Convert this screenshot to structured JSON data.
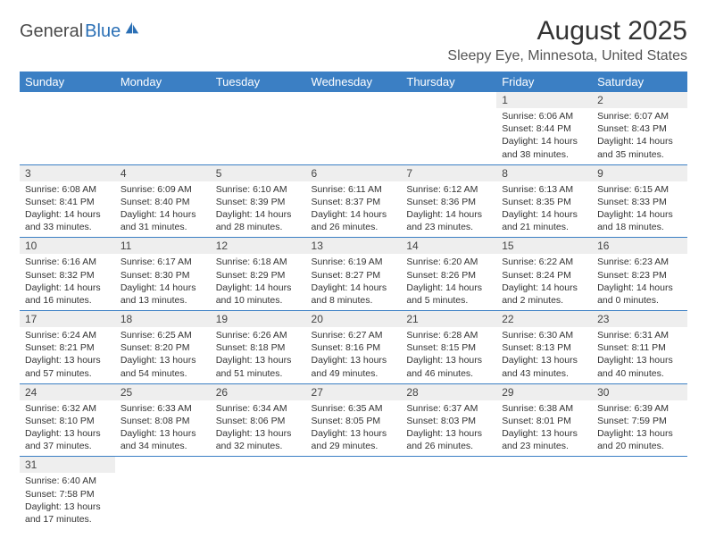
{
  "logo": {
    "part1": "General",
    "part2": "Blue"
  },
  "title": "August 2025",
  "location": "Sleepy Eye, Minnesota, United States",
  "colors": {
    "header_bg": "#3b7fc4",
    "header_text": "#ffffff",
    "daynum_bg": "#eeeeee",
    "rule": "#3b7fc4",
    "logo_blue": "#2a6fb5",
    "logo_gray": "#4a4a4a"
  },
  "weekdays": [
    "Sunday",
    "Monday",
    "Tuesday",
    "Wednesday",
    "Thursday",
    "Friday",
    "Saturday"
  ],
  "weeks": [
    [
      null,
      null,
      null,
      null,
      null,
      {
        "n": "1",
        "sr": "Sunrise: 6:06 AM",
        "ss": "Sunset: 8:44 PM",
        "dl": "Daylight: 14 hours and 38 minutes."
      },
      {
        "n": "2",
        "sr": "Sunrise: 6:07 AM",
        "ss": "Sunset: 8:43 PM",
        "dl": "Daylight: 14 hours and 35 minutes."
      }
    ],
    [
      {
        "n": "3",
        "sr": "Sunrise: 6:08 AM",
        "ss": "Sunset: 8:41 PM",
        "dl": "Daylight: 14 hours and 33 minutes."
      },
      {
        "n": "4",
        "sr": "Sunrise: 6:09 AM",
        "ss": "Sunset: 8:40 PM",
        "dl": "Daylight: 14 hours and 31 minutes."
      },
      {
        "n": "5",
        "sr": "Sunrise: 6:10 AM",
        "ss": "Sunset: 8:39 PM",
        "dl": "Daylight: 14 hours and 28 minutes."
      },
      {
        "n": "6",
        "sr": "Sunrise: 6:11 AM",
        "ss": "Sunset: 8:37 PM",
        "dl": "Daylight: 14 hours and 26 minutes."
      },
      {
        "n": "7",
        "sr": "Sunrise: 6:12 AM",
        "ss": "Sunset: 8:36 PM",
        "dl": "Daylight: 14 hours and 23 minutes."
      },
      {
        "n": "8",
        "sr": "Sunrise: 6:13 AM",
        "ss": "Sunset: 8:35 PM",
        "dl": "Daylight: 14 hours and 21 minutes."
      },
      {
        "n": "9",
        "sr": "Sunrise: 6:15 AM",
        "ss": "Sunset: 8:33 PM",
        "dl": "Daylight: 14 hours and 18 minutes."
      }
    ],
    [
      {
        "n": "10",
        "sr": "Sunrise: 6:16 AM",
        "ss": "Sunset: 8:32 PM",
        "dl": "Daylight: 14 hours and 16 minutes."
      },
      {
        "n": "11",
        "sr": "Sunrise: 6:17 AM",
        "ss": "Sunset: 8:30 PM",
        "dl": "Daylight: 14 hours and 13 minutes."
      },
      {
        "n": "12",
        "sr": "Sunrise: 6:18 AM",
        "ss": "Sunset: 8:29 PM",
        "dl": "Daylight: 14 hours and 10 minutes."
      },
      {
        "n": "13",
        "sr": "Sunrise: 6:19 AM",
        "ss": "Sunset: 8:27 PM",
        "dl": "Daylight: 14 hours and 8 minutes."
      },
      {
        "n": "14",
        "sr": "Sunrise: 6:20 AM",
        "ss": "Sunset: 8:26 PM",
        "dl": "Daylight: 14 hours and 5 minutes."
      },
      {
        "n": "15",
        "sr": "Sunrise: 6:22 AM",
        "ss": "Sunset: 8:24 PM",
        "dl": "Daylight: 14 hours and 2 minutes."
      },
      {
        "n": "16",
        "sr": "Sunrise: 6:23 AM",
        "ss": "Sunset: 8:23 PM",
        "dl": "Daylight: 14 hours and 0 minutes."
      }
    ],
    [
      {
        "n": "17",
        "sr": "Sunrise: 6:24 AM",
        "ss": "Sunset: 8:21 PM",
        "dl": "Daylight: 13 hours and 57 minutes."
      },
      {
        "n": "18",
        "sr": "Sunrise: 6:25 AM",
        "ss": "Sunset: 8:20 PM",
        "dl": "Daylight: 13 hours and 54 minutes."
      },
      {
        "n": "19",
        "sr": "Sunrise: 6:26 AM",
        "ss": "Sunset: 8:18 PM",
        "dl": "Daylight: 13 hours and 51 minutes."
      },
      {
        "n": "20",
        "sr": "Sunrise: 6:27 AM",
        "ss": "Sunset: 8:16 PM",
        "dl": "Daylight: 13 hours and 49 minutes."
      },
      {
        "n": "21",
        "sr": "Sunrise: 6:28 AM",
        "ss": "Sunset: 8:15 PM",
        "dl": "Daylight: 13 hours and 46 minutes."
      },
      {
        "n": "22",
        "sr": "Sunrise: 6:30 AM",
        "ss": "Sunset: 8:13 PM",
        "dl": "Daylight: 13 hours and 43 minutes."
      },
      {
        "n": "23",
        "sr": "Sunrise: 6:31 AM",
        "ss": "Sunset: 8:11 PM",
        "dl": "Daylight: 13 hours and 40 minutes."
      }
    ],
    [
      {
        "n": "24",
        "sr": "Sunrise: 6:32 AM",
        "ss": "Sunset: 8:10 PM",
        "dl": "Daylight: 13 hours and 37 minutes."
      },
      {
        "n": "25",
        "sr": "Sunrise: 6:33 AM",
        "ss": "Sunset: 8:08 PM",
        "dl": "Daylight: 13 hours and 34 minutes."
      },
      {
        "n": "26",
        "sr": "Sunrise: 6:34 AM",
        "ss": "Sunset: 8:06 PM",
        "dl": "Daylight: 13 hours and 32 minutes."
      },
      {
        "n": "27",
        "sr": "Sunrise: 6:35 AM",
        "ss": "Sunset: 8:05 PM",
        "dl": "Daylight: 13 hours and 29 minutes."
      },
      {
        "n": "28",
        "sr": "Sunrise: 6:37 AM",
        "ss": "Sunset: 8:03 PM",
        "dl": "Daylight: 13 hours and 26 minutes."
      },
      {
        "n": "29",
        "sr": "Sunrise: 6:38 AM",
        "ss": "Sunset: 8:01 PM",
        "dl": "Daylight: 13 hours and 23 minutes."
      },
      {
        "n": "30",
        "sr": "Sunrise: 6:39 AM",
        "ss": "Sunset: 7:59 PM",
        "dl": "Daylight: 13 hours and 20 minutes."
      }
    ],
    [
      {
        "n": "31",
        "sr": "Sunrise: 6:40 AM",
        "ss": "Sunset: 7:58 PM",
        "dl": "Daylight: 13 hours and 17 minutes."
      },
      null,
      null,
      null,
      null,
      null,
      null
    ]
  ]
}
